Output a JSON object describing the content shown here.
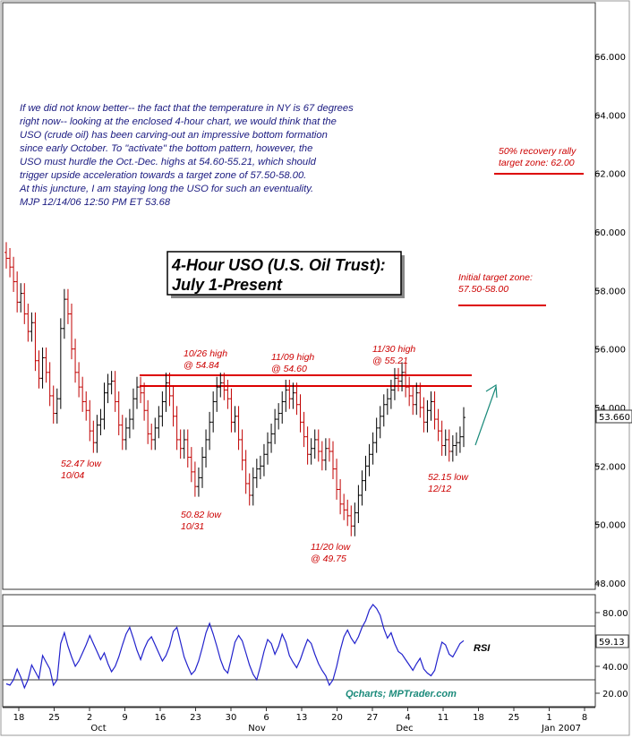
{
  "chart_data": {
    "type": "ohlc",
    "title": "4-Hour USO (U.S. Oil Trust): July 1-Present",
    "title_lines": [
      "4-Hour USO (U.S. Oil Trust):",
      "July 1-Present"
    ],
    "commentary": [
      "If we did not know better-- the fact that the temperature in NY is 67 degrees",
      "right now-- looking at the enclosed 4-hour chart, we would think that the",
      "USO (crude oil) has been carving-out an impressive bottom formation",
      "since early October. To \"activate\" the bottom pattern, however, the",
      "USO must hurdle the Oct.-Dec. highs at 54.60-55.21, which should",
      "trigger upside acceleration towards a target zone of 57.50-58.00.",
      "At this juncture, I am staying long the USO for such an eventuality.",
      "MJP  12/14/06 12:50 PM ET  53.68"
    ],
    "price_axis": {
      "min": 48,
      "max": 66,
      "ticks": [
        "48.000",
        "50.000",
        "52.000",
        "54.000",
        "56.000",
        "58.000",
        "60.000",
        "62.000",
        "64.000",
        "66.000"
      ],
      "last_price_label": "53.660",
      "last_price": 53.66
    },
    "rsi_axis": {
      "min": 20,
      "max": 80,
      "ticks": [
        "20.00",
        "40.00",
        "60.00",
        "80.00"
      ],
      "last_label": "59.13",
      "last": 59.13,
      "bands": [
        30,
        70
      ],
      "label": "RSI"
    },
    "x_axis": {
      "ticks": [
        "18",
        "25",
        "2",
        "9",
        "16",
        "23",
        "30",
        "6",
        "13",
        "20",
        "27",
        "4",
        "11",
        "18",
        "25",
        "1",
        "8"
      ],
      "months": [
        "Oct",
        "Nov",
        "Dec",
        "Jan 2007"
      ]
    },
    "price_series": [
      59.1,
      58.8,
      58.3,
      57.6,
      57.9,
      57.2,
      56.6,
      56.9,
      55.6,
      55.0,
      55.7,
      55.2,
      54.4,
      53.8,
      54.3,
      56.7,
      57.7,
      57.2,
      56.0,
      55.2,
      54.7,
      54.2,
      53.9,
      53.2,
      52.8,
      53.4,
      53.6,
      54.5,
      54.8,
      54.9,
      54.2,
      53.4,
      52.9,
      53.3,
      53.6,
      54.3,
      54.7,
      54.5,
      53.9,
      53.1,
      52.9,
      53.3,
      53.7,
      54.2,
      54.84,
      54.4,
      53.7,
      52.9,
      52.6,
      52.9,
      52.3,
      51.8,
      51.3,
      51.6,
      52.3,
      52.9,
      53.5,
      54.2,
      54.7,
      54.84,
      54.6,
      54.3,
      53.5,
      53.7,
      52.9,
      52.2,
      51.4,
      51.0,
      51.6,
      51.9,
      52.0,
      52.4,
      52.8,
      53.1,
      53.6,
      53.8,
      54.2,
      54.6,
      54.3,
      54.5,
      54.1,
      53.5,
      53.0,
      52.4,
      52.6,
      52.9,
      52.5,
      52.2,
      52.6,
      52.5,
      51.9,
      51.2,
      50.7,
      50.5,
      50.3,
      49.95,
      50.4,
      51.0,
      51.5,
      52.0,
      52.4,
      52.8,
      53.3,
      53.7,
      54.1,
      54.3,
      54.6,
      55.0,
      54.9,
      55.2,
      54.7,
      54.4,
      54.1,
      54.5,
      54.0,
      53.5,
      53.9,
      54.2,
      53.6,
      53.2,
      52.7,
      52.9,
      52.5,
      52.7,
      52.8,
      53.0,
      53.66
    ],
    "rsi_series": [
      27,
      26,
      30,
      38,
      32,
      24,
      30,
      41,
      36,
      31,
      48,
      43,
      38,
      26,
      30,
      57,
      65,
      55,
      47,
      40,
      44,
      50,
      56,
      63,
      57,
      51,
      45,
      50,
      42,
      36,
      40,
      47,
      56,
      64,
      69,
      61,
      52,
      45,
      53,
      59,
      62,
      56,
      50,
      44,
      48,
      55,
      66,
      69,
      58,
      47,
      40,
      34,
      37,
      44,
      54,
      65,
      72,
      64,
      55,
      45,
      38,
      35,
      46,
      58,
      63,
      59,
      50,
      41,
      34,
      30,
      40,
      51,
      60,
      57,
      49,
      55,
      64,
      58,
      48,
      43,
      39,
      45,
      53,
      60,
      57,
      49,
      42,
      37,
      33,
      26,
      30,
      40,
      52,
      62,
      67,
      61,
      57,
      62,
      69,
      74,
      82,
      86,
      83,
      78,
      68,
      61,
      65,
      57,
      51,
      49,
      45,
      41,
      37,
      42,
      46,
      38,
      35,
      33,
      37,
      48,
      58,
      56,
      49,
      47,
      52,
      57,
      59.13
    ],
    "resistance_levels": [
      55.0,
      54.72
    ],
    "annotations": [
      {
        "lines": [
          "10/26 high",
          "@ 54.84"
        ]
      },
      {
        "lines": [
          "11/09 high",
          "@ 54.60"
        ]
      },
      {
        "lines": [
          "11/30 high",
          "@ 55.21"
        ]
      },
      {
        "lines": [
          "52.47 low",
          "10/04"
        ]
      },
      {
        "lines": [
          "50.82 low",
          "10/31"
        ]
      },
      {
        "lines": [
          "11/20 low",
          "@ 49.75"
        ]
      },
      {
        "lines": [
          "52.15 low",
          "12/12"
        ]
      },
      {
        "lines": [
          "Initial target zone:",
          "57.50-58.00"
        ],
        "level": 57.5
      },
      {
        "lines": [
          "50% recovery rally",
          "target zone: 62.00"
        ],
        "level": 62.0
      }
    ],
    "watermark": "Qcharts; MPTrader.com",
    "colors": {
      "up": "#000000",
      "down": "#c00000",
      "annotation": "#cc0000",
      "commentary": "#1a1a80",
      "rsi": "#2222cc",
      "arrow": "#1a8a7a"
    }
  }
}
